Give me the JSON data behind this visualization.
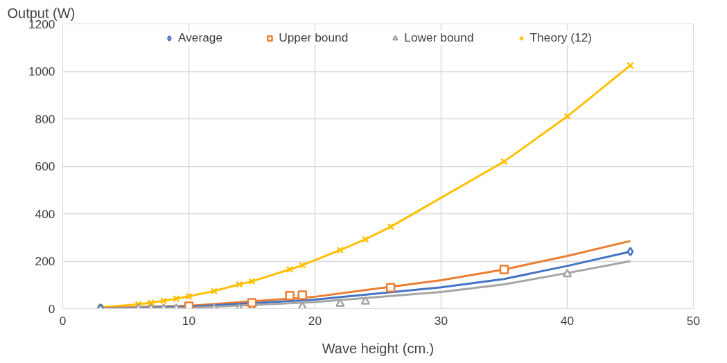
{
  "chart_data": {
    "type": "scatter",
    "xlabel": "Wave height (cm.)",
    "ylabel": "Output (W)",
    "xlim": [
      0,
      50
    ],
    "ylim": [
      0,
      1200
    ],
    "xticks": [
      0,
      10,
      20,
      30,
      40,
      50
    ],
    "yticks": [
      0,
      200,
      400,
      600,
      800,
      1000,
      1200
    ],
    "grid": true,
    "legend": "top",
    "series": [
      {
        "name": "Average",
        "color": "#4472c4",
        "marker": "diamond",
        "x": [
          3,
          45
        ],
        "values": [
          2,
          240
        ]
      },
      {
        "name": "Upper bound",
        "color": "#ed7d31",
        "marker": "square",
        "x": [
          10,
          15,
          18,
          19,
          26,
          35
        ],
        "values": [
          10,
          25,
          55,
          57,
          88,
          165
        ]
      },
      {
        "name": "Lower bound",
        "color": "#a5a5a5",
        "marker": "triangle",
        "x": [
          3,
          6,
          7,
          8,
          9,
          12,
          14,
          15,
          19,
          22,
          24,
          40
        ],
        "values": [
          0,
          0,
          0,
          0,
          0,
          0,
          0,
          0,
          8,
          20,
          30,
          145
        ]
      },
      {
        "name": "Theory (12)",
        "type": "line",
        "color": "#ffc000",
        "marker": "cross",
        "x": [
          3,
          6,
          7,
          8,
          9,
          10,
          12,
          14,
          15,
          18,
          19,
          22,
          24,
          26,
          35,
          40,
          45
        ],
        "values": [
          5,
          18,
          25,
          33,
          42,
          52,
          74,
          102,
          115,
          165,
          183,
          247,
          292,
          345,
          620,
          810,
          1025
        ]
      },
      {
        "type": "line",
        "color": "#ed7d31",
        "marker": "none",
        "x": [
          3,
          10,
          20,
          30,
          35,
          40,
          45
        ],
        "values": [
          2,
          12,
          50,
          120,
          165,
          222,
          285
        ]
      },
      {
        "type": "line",
        "color": "#4472c4",
        "marker": "none",
        "x": [
          3,
          10,
          20,
          30,
          35,
          40,
          45
        ],
        "values": [
          0,
          8,
          38,
          90,
          125,
          180,
          240
        ]
      },
      {
        "type": "line",
        "color": "#a5a5a5",
        "marker": "none",
        "x": [
          3,
          10,
          20,
          30,
          35,
          40,
          45
        ],
        "values": [
          0,
          3,
          28,
          70,
          102,
          150,
          200
        ]
      }
    ]
  }
}
